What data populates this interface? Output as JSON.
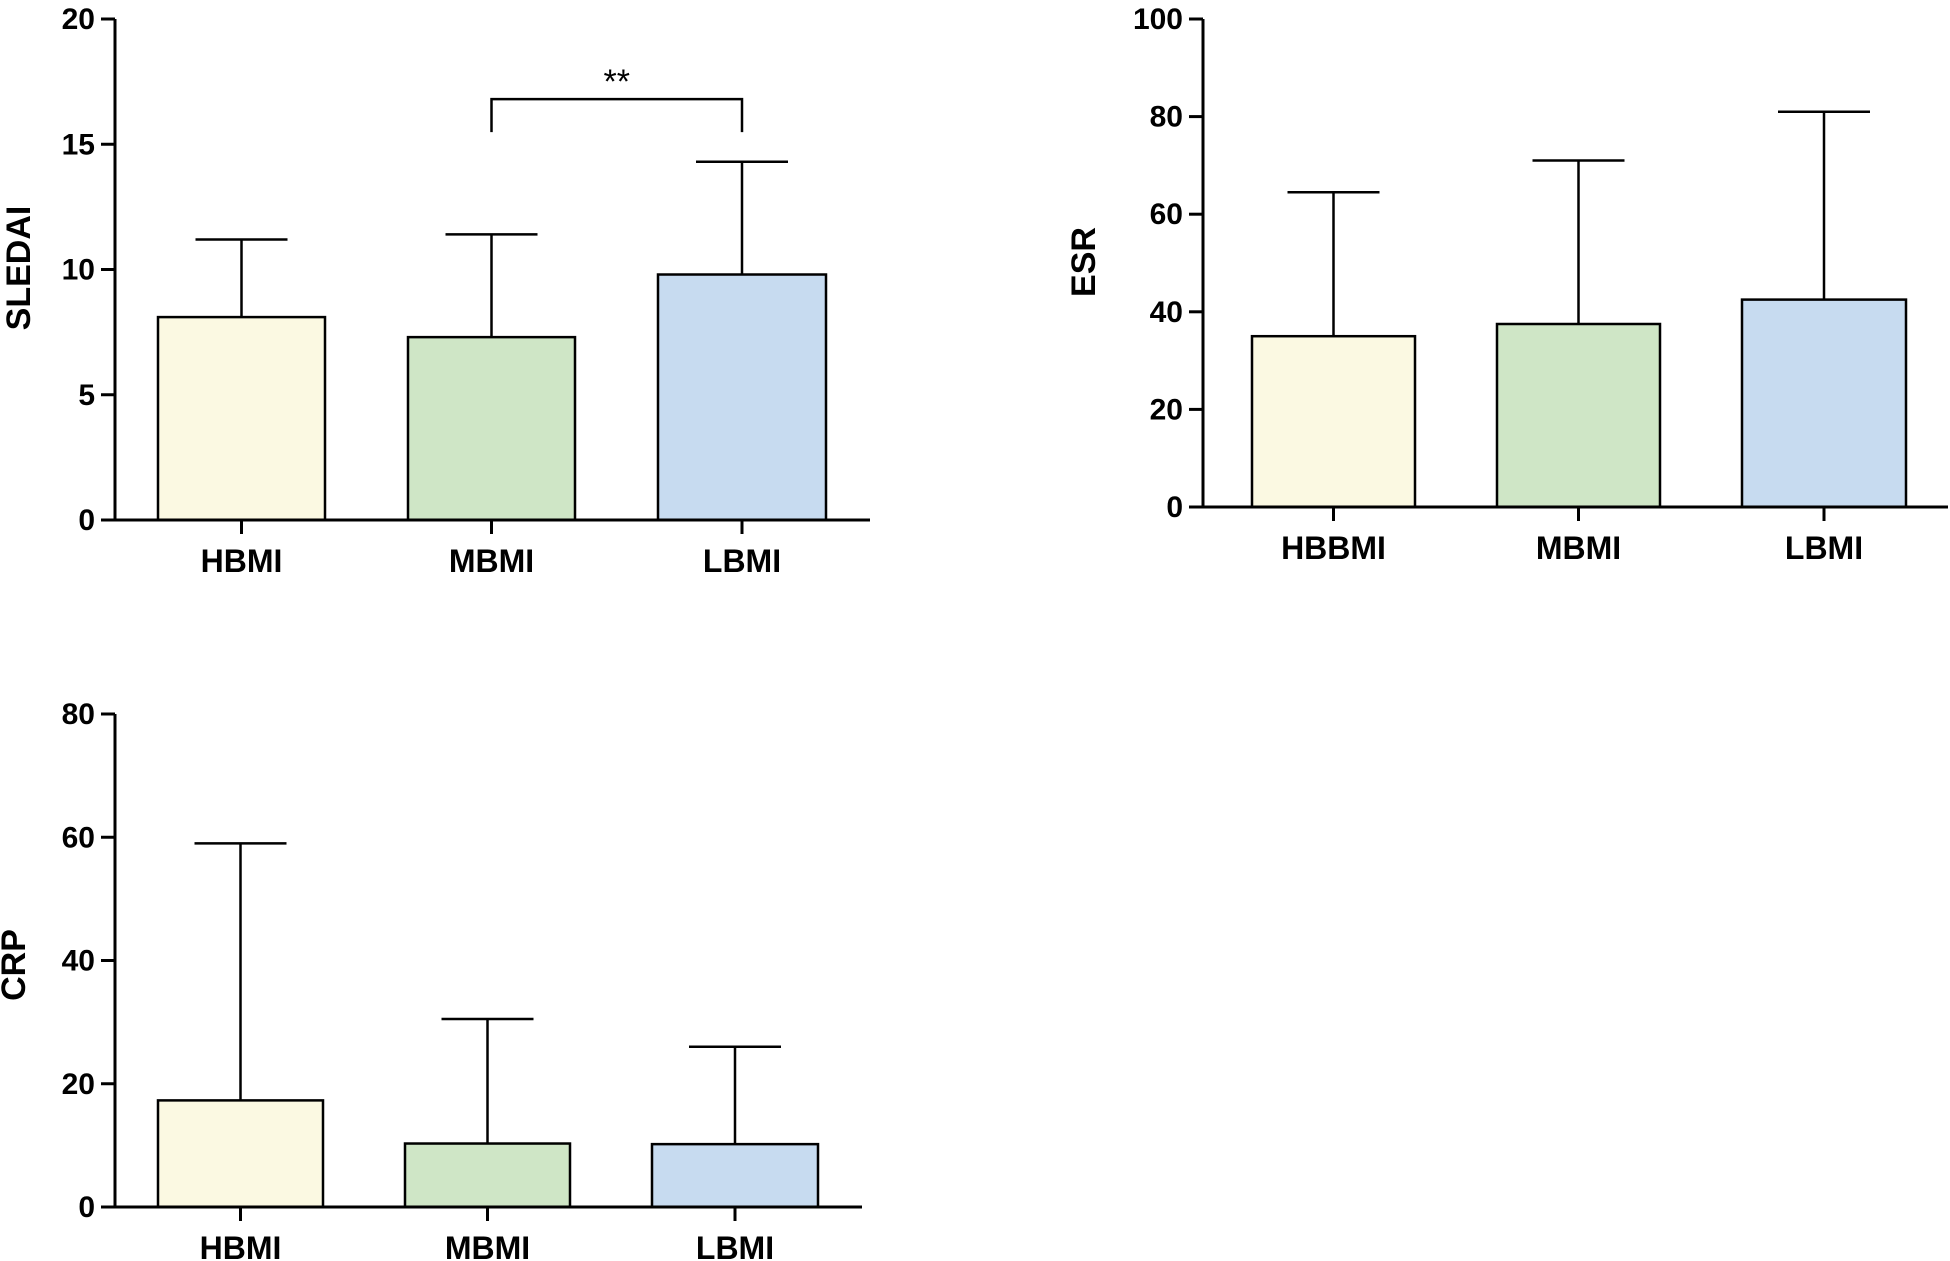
{
  "colors": {
    "bar_fills": [
      "#fbf9e2",
      "#cfe6c6",
      "#c7dbf0"
    ],
    "bar_stroke": "#000000",
    "axis": "#000000"
  },
  "chart_data": [
    {
      "type": "bar",
      "categories": [
        "HBMI",
        "MBMI",
        "LBMI"
      ],
      "series": [
        {
          "values": [
            8.1,
            7.3,
            9.8
          ],
          "error_upper": [
            11.2,
            11.4,
            14.3
          ]
        }
      ],
      "ylabel": "SLEDAI",
      "ylim": [
        0,
        20
      ],
      "yticks": [
        0,
        5,
        10,
        15,
        20
      ],
      "annotations": [
        {
          "text": "**",
          "from": "MBMI",
          "to": "LBMI",
          "y": 16.8
        }
      ]
    },
    {
      "type": "bar",
      "categories": [
        "HBBMI",
        "MBMI",
        "LBMI"
      ],
      "series": [
        {
          "values": [
            35,
            37.5,
            42.5
          ],
          "error_upper": [
            64.5,
            71,
            81
          ]
        }
      ],
      "ylabel": "ESR",
      "ylim": [
        0,
        100
      ],
      "yticks": [
        0,
        20,
        40,
        60,
        80,
        100
      ],
      "annotations": []
    },
    {
      "type": "bar",
      "categories": [
        "HBMI",
        "MBMI",
        "LBMI"
      ],
      "series": [
        {
          "values": [
            17.3,
            10.3,
            10.2
          ],
          "error_upper": [
            59,
            30.5,
            26
          ]
        }
      ],
      "ylabel": "CRP",
      "ylim": [
        0,
        80
      ],
      "yticks": [
        0,
        20,
        40,
        60,
        80
      ],
      "annotations": []
    }
  ]
}
